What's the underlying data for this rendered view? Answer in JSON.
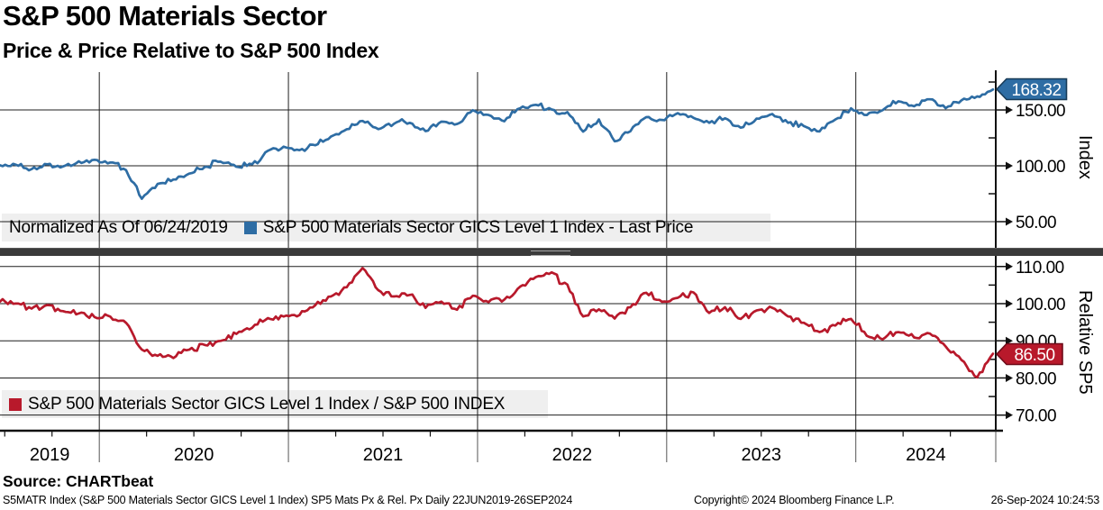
{
  "header": {
    "title": "S&P 500 Materials Sector",
    "subtitle": "Price & Price Relative to S&P 500 Index"
  },
  "source_line": "Source: CHARTbeat",
  "footer": {
    "description": "S5MATR Index (S&P 500 Materials Sector GICS Level 1 Index) SP5 Mats Px & Rel. Px  Daily 22JUN2019-26SEP2024",
    "copyright": "Copyright© 2024 Bloomberg Finance L.P.",
    "timestamp": "26-Sep-2024 10:24:53"
  },
  "colors": {
    "blue_line": "#2e6da4",
    "red_line": "#b8192b",
    "legend_bg": "#efefef",
    "grid": "#1f1f1f",
    "axis": "#111111",
    "divider": "#3a3a3a"
  },
  "x_axis": {
    "year_labels": [
      "2019",
      "2020",
      "2021",
      "2022",
      "2023",
      "2024"
    ],
    "start_label": "22JUN2019",
    "end_label": "26SEP2024"
  },
  "chart_data": [
    {
      "type": "line",
      "name": "price-index",
      "legend_note": "Normalized As Of 06/24/2019",
      "legend_label": "S&P 500 Materials Sector GICS Level 1 Index - Last Price",
      "color": "#2e6da4",
      "axis_title": "Index",
      "badge": {
        "label": "168.32",
        "value": 168.32,
        "bg": "#2e6da4",
        "border": "#173a57"
      },
      "y_ticks": [
        {
          "value": 150,
          "label": "150.00"
        },
        {
          "value": 100,
          "label": "100.00"
        },
        {
          "value": 50,
          "label": "50.00"
        }
      ],
      "y_minor_ticks": [
        175,
        125,
        75
      ],
      "y_range": [
        25.8,
        183.9
      ],
      "x0": 2019.475,
      "dx_years": 0.0833333,
      "values": [
        100,
        101.5,
        96.5,
        101,
        100,
        103.5,
        105,
        103,
        96,
        71,
        84,
        88,
        93,
        99,
        104,
        99.5,
        101,
        113,
        117,
        114,
        119,
        126,
        133,
        140,
        133,
        138,
        139,
        131,
        140,
        137,
        150,
        145,
        140,
        152,
        155,
        150,
        148,
        131,
        141,
        122,
        131,
        144,
        141,
        147,
        143,
        138,
        143,
        134,
        142,
        146,
        139,
        136,
        131,
        142,
        151,
        146,
        150,
        158,
        153,
        160,
        152,
        158,
        162,
        168.32
      ]
    },
    {
      "type": "line",
      "name": "relative-to-sp500",
      "legend_label": "S&P 500 Materials Sector GICS Level 1 Index / S&P 500 INDEX",
      "color": "#b8192b",
      "axis_title": "Relative SP5",
      "badge": {
        "label": "86.50",
        "value": 86.5,
        "bg": "#b8192b",
        "border": "#6e0a18"
      },
      "y_ticks": [
        {
          "value": 110,
          "label": "110.00"
        },
        {
          "value": 100,
          "label": "100.00"
        },
        {
          "value": 90,
          "label": "90.00"
        },
        {
          "value": 80,
          "label": "80.00"
        },
        {
          "value": 70,
          "label": "70.00"
        }
      ],
      "y_minor_ticks": [
        105,
        95,
        85,
        75
      ],
      "y_range": [
        65.8,
        112.85
      ],
      "x0": 2019.475,
      "dx_years": 0.0833333,
      "values": [
        100.5,
        100,
        98.5,
        99.5,
        98,
        97.5,
        96.5,
        96.5,
        95,
        87.5,
        86,
        85.5,
        87.5,
        89,
        90,
        92,
        93.5,
        96,
        96.5,
        97,
        99.5,
        102,
        104.5,
        109.5,
        103.5,
        102,
        102.5,
        99,
        100.5,
        98.5,
        102,
        100.5,
        101,
        104.5,
        107,
        108.5,
        105,
        96.5,
        98.5,
        96,
        99,
        103,
        100.5,
        101.5,
        103,
        97.5,
        99,
        96,
        98,
        99,
        96.5,
        95,
        92.5,
        94,
        96,
        91.5,
        90.5,
        92.5,
        91,
        92,
        88.5,
        85,
        80,
        86.5
      ]
    }
  ]
}
